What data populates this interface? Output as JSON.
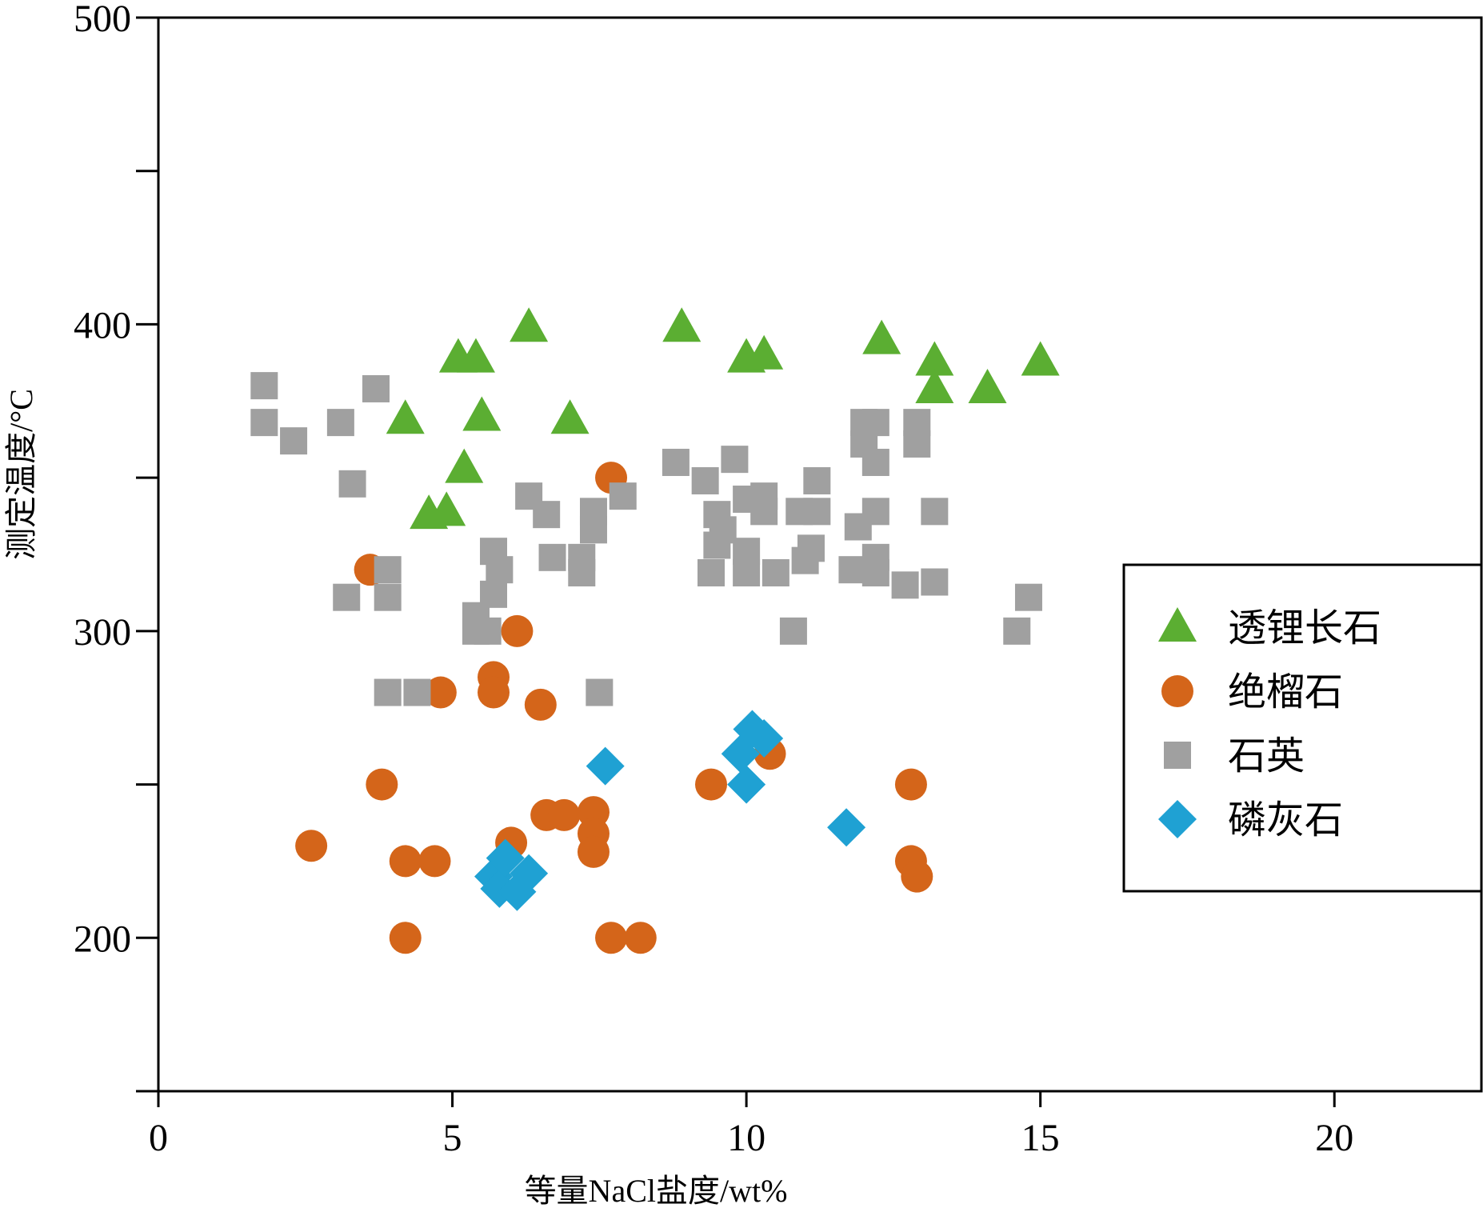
{
  "chart_data": {
    "type": "scatter",
    "title": "",
    "xlabel": "等量NaCl盐度/wt%",
    "ylabel": "测定温度/°C",
    "xlim": [
      0,
      22.5
    ],
    "ylim": [
      150,
      500
    ],
    "x_ticks": [
      0,
      5,
      10,
      15,
      20
    ],
    "y_ticks": [
      200,
      300,
      400,
      500
    ],
    "y_minor_ticks": [
      150,
      250,
      350,
      450
    ],
    "grid": false,
    "legend_position": "right",
    "series": [
      {
        "name": "透锂长石",
        "marker": "triangle",
        "color": "#5BAE32",
        "points": [
          [
            4.2,
            369
          ],
          [
            4.6,
            338
          ],
          [
            4.9,
            339
          ],
          [
            5.1,
            389
          ],
          [
            5.2,
            353
          ],
          [
            5.4,
            389
          ],
          [
            5.5,
            370
          ],
          [
            6.3,
            399
          ],
          [
            7.0,
            369
          ],
          [
            8.9,
            399
          ],
          [
            10.0,
            389
          ],
          [
            10.3,
            390
          ],
          [
            12.3,
            395
          ],
          [
            13.2,
            388
          ],
          [
            13.2,
            379
          ],
          [
            14.1,
            379
          ],
          [
            15.0,
            388
          ]
        ]
      },
      {
        "name": "绝榴石",
        "marker": "circle",
        "color": "#D4651A",
        "points": [
          [
            2.6,
            230
          ],
          [
            3.6,
            320
          ],
          [
            3.8,
            250
          ],
          [
            4.2,
            225
          ],
          [
            4.2,
            200
          ],
          [
            4.7,
            225
          ],
          [
            4.8,
            280
          ],
          [
            5.7,
            285
          ],
          [
            5.7,
            280
          ],
          [
            6.0,
            231
          ],
          [
            6.1,
            300
          ],
          [
            6.5,
            276
          ],
          [
            6.6,
            240
          ],
          [
            6.9,
            240
          ],
          [
            7.4,
            241
          ],
          [
            7.4,
            234
          ],
          [
            7.4,
            228
          ],
          [
            7.7,
            350
          ],
          [
            7.7,
            200
          ],
          [
            8.2,
            200
          ],
          [
            9.4,
            250
          ],
          [
            10.4,
            260
          ],
          [
            12.8,
            250
          ],
          [
            12.8,
            225
          ],
          [
            12.9,
            220
          ]
        ]
      },
      {
        "name": "石英",
        "marker": "square",
        "color": "#A0A0A0",
        "points": [
          [
            1.8,
            380
          ],
          [
            1.8,
            368
          ],
          [
            2.3,
            362
          ],
          [
            3.1,
            368
          ],
          [
            3.3,
            348
          ],
          [
            3.2,
            311
          ],
          [
            3.7,
            379
          ],
          [
            3.9,
            320
          ],
          [
            3.9,
            311
          ],
          [
            3.9,
            280
          ],
          [
            4.4,
            280
          ],
          [
            5.4,
            305
          ],
          [
            5.4,
            300
          ],
          [
            5.7,
            326
          ],
          [
            5.8,
            320
          ],
          [
            5.7,
            312
          ],
          [
            5.6,
            300
          ],
          [
            6.3,
            344
          ],
          [
            6.6,
            338
          ],
          [
            6.7,
            324
          ],
          [
            7.2,
            324
          ],
          [
            7.2,
            319
          ],
          [
            7.4,
            339
          ],
          [
            7.4,
            333
          ],
          [
            7.5,
            280
          ],
          [
            7.9,
            344
          ],
          [
            8.8,
            355
          ],
          [
            9.3,
            349
          ],
          [
            9.4,
            319
          ],
          [
            9.5,
            338
          ],
          [
            9.5,
            328
          ],
          [
            9.6,
            333
          ],
          [
            9.8,
            356
          ],
          [
            10.0,
            343
          ],
          [
            10.0,
            326
          ],
          [
            10.0,
            319
          ],
          [
            10.3,
            339
          ],
          [
            10.3,
            344
          ],
          [
            10.5,
            319
          ],
          [
            10.8,
            300
          ],
          [
            10.9,
            339
          ],
          [
            11.0,
            323
          ],
          [
            11.1,
            327
          ],
          [
            11.2,
            349
          ],
          [
            11.2,
            339
          ],
          [
            11.8,
            320
          ],
          [
            11.9,
            334
          ],
          [
            12.0,
            368
          ],
          [
            12.0,
            361
          ],
          [
            12.2,
            368
          ],
          [
            12.2,
            355
          ],
          [
            12.2,
            339
          ],
          [
            12.2,
            324
          ],
          [
            12.2,
            319
          ],
          [
            12.7,
            315
          ],
          [
            12.9,
            368
          ],
          [
            12.9,
            361
          ],
          [
            13.2,
            339
          ],
          [
            13.2,
            316
          ],
          [
            14.6,
            300
          ],
          [
            14.8,
            311
          ]
        ]
      },
      {
        "name": "磷灰石",
        "marker": "diamond",
        "color": "#1FA1D3",
        "points": [
          [
            5.7,
            220
          ],
          [
            5.8,
            216
          ],
          [
            5.9,
            226
          ],
          [
            6.1,
            215
          ],
          [
            6.3,
            221
          ],
          [
            7.6,
            256
          ],
          [
            9.9,
            260
          ],
          [
            10.1,
            268
          ],
          [
            10.3,
            265
          ],
          [
            10.0,
            250
          ],
          [
            11.7,
            236
          ]
        ]
      }
    ]
  }
}
